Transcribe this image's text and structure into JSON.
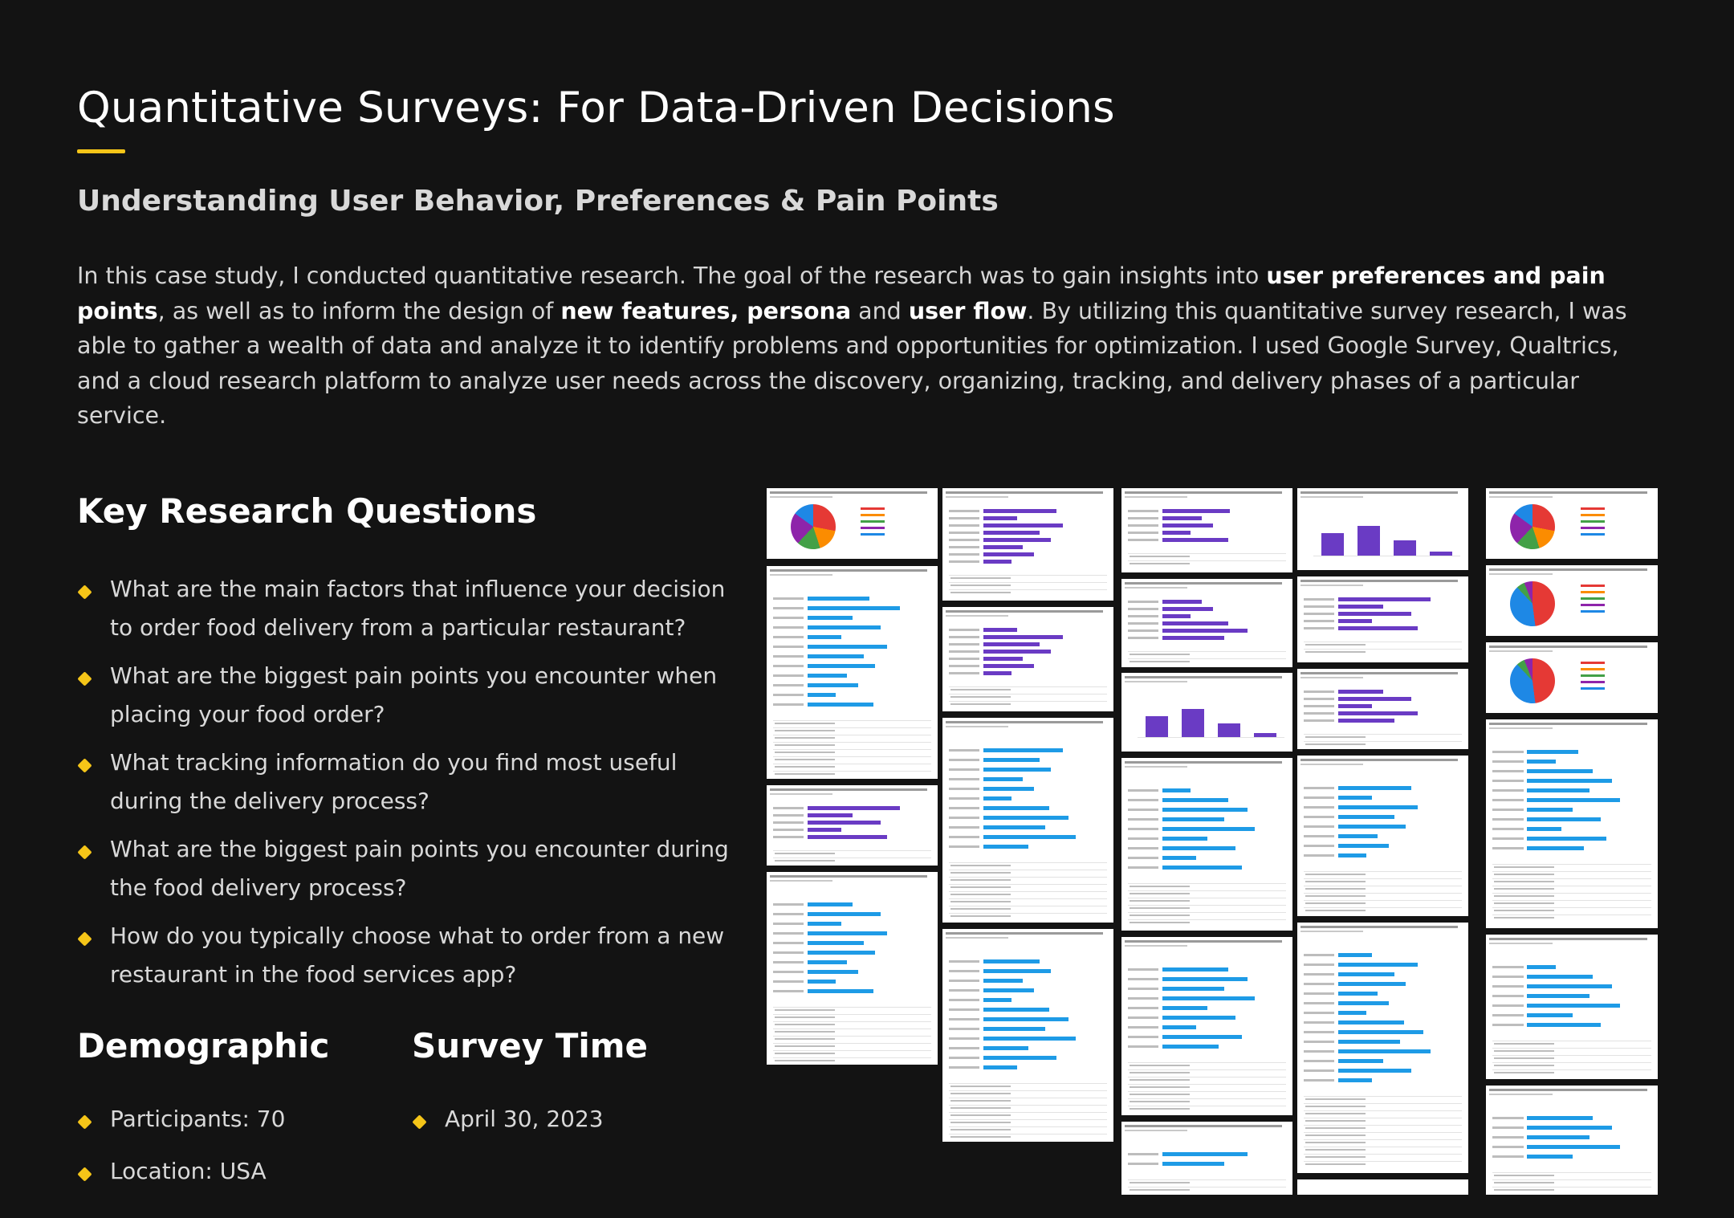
{
  "header": {
    "title": "Quantitative Surveys: For Data-Driven Decisions",
    "subtitle": "Understanding User Behavior, Preferences & Pain Points"
  },
  "intro": {
    "p1": "In this case study, I conducted quantitative research. The goal of the research was to gain insights into ",
    "b1": "user preferences and pain points",
    "p2": ", as well as to inform the design of ",
    "b2": "new features, persona",
    "p3": " and ",
    "b3": "user flow",
    "p4": ". By utilizing this quantitative survey research, I was able to gather a wealth of data and analyze it to identify problems and opportunities for optimization. I used Google Survey, Qualtrics, and a cloud research platform to analyze user needs across the discovery, organizing, tracking, and delivery phases of a particular service."
  },
  "key_questions": {
    "title": "Key Research Questions",
    "items": [
      "What are the main factors that influence your decision to order food delivery from a particular restaurant?",
      "What are the biggest pain points you encounter when placing your food order?",
      "What tracking information do you find most useful during the delivery process?",
      "What are the biggest pain points you encounter during the food delivery process?",
      "How do you typically choose what to order from a new restaurant in the food services app?"
    ]
  },
  "demographic": {
    "title": "Demographic",
    "items": [
      "Participants: 70",
      "Location: USA"
    ]
  },
  "survey_time": {
    "title": "Survey Time",
    "items": [
      "April 30, 2023"
    ]
  },
  "collage": {
    "colors": {
      "purple": "#6a3bc4",
      "blue": "#1e9be6",
      "accent": "#f5c518"
    }
  }
}
